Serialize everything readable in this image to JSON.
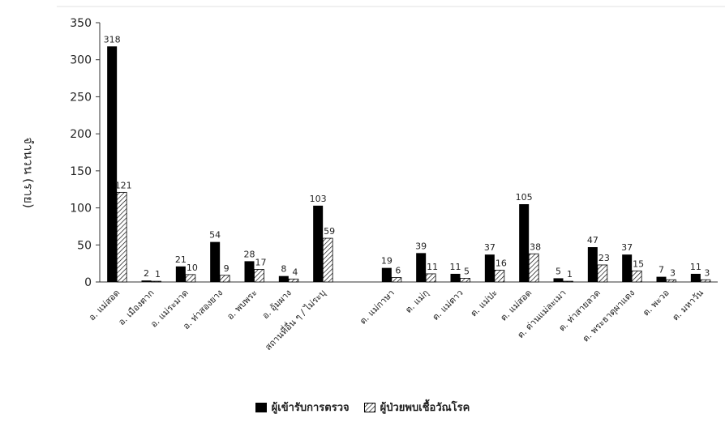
{
  "chart_data": {
    "type": "bar",
    "ylabel": "จำนวน (ราย)",
    "ylim": [
      0,
      350
    ],
    "yticks": [
      0,
      50,
      100,
      150,
      200,
      250,
      300,
      350
    ],
    "grid": false,
    "legend_position": "bottom",
    "categories": [
      "อ. แม่สอด",
      "อ. เมืองตาก",
      "อ. แม่ระมาด",
      "อ. ท่าสองยาง",
      "อ. พบพระ",
      "อ. อุ้มผาง",
      "สถานที่อื่น ๆ / ไม่ระบุ",
      "",
      "ต. แม่กาษา",
      "ต. แม่กุ",
      "ต. แม่ตาว",
      "ต. แม่ปะ",
      "ต. แม่สอด",
      "ต. ด่านแม่ละเมา",
      "ต. ท่าสายลวด",
      "ต. พระธาตุผาแดง",
      "ต. พะวอ",
      "ต. มหาวัน"
    ],
    "series": [
      {
        "name": "ผู้เข้ารับการตรวจ",
        "color": "#000000",
        "values": [
          318,
          2,
          21,
          54,
          28,
          8,
          103,
          null,
          19,
          39,
          11,
          37,
          105,
          5,
          47,
          37,
          7,
          11
        ]
      },
      {
        "name": "ผู้ป่วยพบเชื้อวัณโรค",
        "pattern": "hatched",
        "values": [
          121,
          1,
          10,
          9,
          17,
          4,
          59,
          null,
          6,
          11,
          5,
          16,
          38,
          1,
          23,
          15,
          3,
          3
        ]
      }
    ]
  }
}
